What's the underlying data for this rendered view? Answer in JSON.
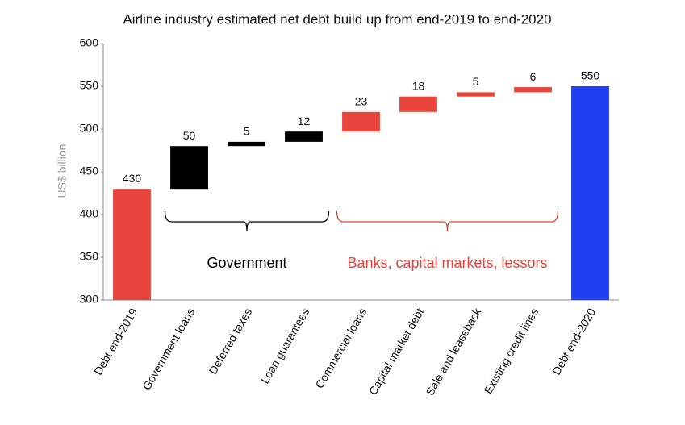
{
  "chart_data": {
    "type": "waterfall",
    "title": "Airline industry estimated net debt build up from end-2019 to end-2020",
    "y_label": "US$ billion",
    "categories": [
      "Debt end-2019",
      "Government loans",
      "Deferred taxes",
      "Loan guarantees",
      "Commercial loans",
      "Capital market debt",
      "Sale and leaseback",
      "Existing credit lines",
      "Debt end-2020"
    ],
    "values": [
      430,
      50,
      5,
      12,
      23,
      18,
      5,
      6,
      550
    ],
    "is_total": [
      true,
      false,
      false,
      false,
      false,
      false,
      false,
      false,
      true
    ],
    "colors": [
      "#e8453c",
      "#000000",
      "#000000",
      "#000000",
      "#e8453c",
      "#e8453c",
      "#e8453c",
      "#e8453c",
      "#1f3ff0"
    ],
    "groups": [
      {
        "label": "Government",
        "color": "#000000",
        "first": 1,
        "last": 3
      },
      {
        "label": "Banks, capital markets, lessors",
        "color": "#e8453c",
        "first": 4,
        "last": 7
      }
    ],
    "ylim": [
      300,
      600
    ],
    "yticks": [
      300,
      350,
      400,
      450,
      500,
      550,
      600
    ]
  }
}
